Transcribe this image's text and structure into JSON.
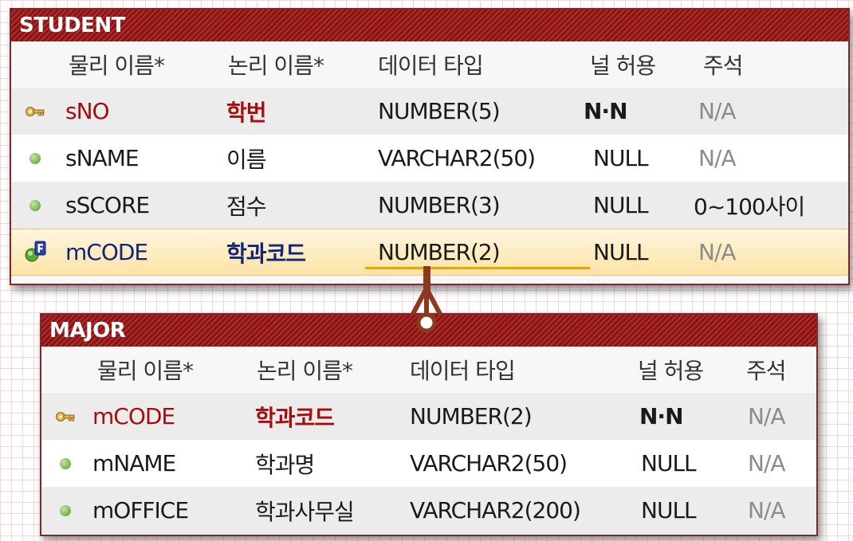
{
  "diagram": {
    "headers": {
      "physical": "물리 이름*",
      "logical": "논리 이름*",
      "datatype": "데이터 타입",
      "nullable": "널 허용",
      "comment": "주석"
    },
    "student": {
      "title": "STUDENT",
      "rows": [
        {
          "physical": "sNO",
          "logical": "학번",
          "datatype": "NUMBER(5)",
          "nullable": "N·N",
          "comment": "N/A",
          "icon": "primary-key-icon"
        },
        {
          "physical": "sNAME",
          "logical": "이름",
          "datatype": "VARCHAR2(50)",
          "nullable": "NULL",
          "comment": "N/A",
          "icon": "column-dot-icon"
        },
        {
          "physical": "sSCORE",
          "logical": "점수",
          "datatype": "NUMBER(3)",
          "nullable": "NULL",
          "comment": "0~100사이",
          "icon": "column-dot-icon"
        },
        {
          "physical": "mCODE",
          "logical": "학과코드",
          "datatype": "NUMBER(2)",
          "nullable": "NULL",
          "comment": "N/A",
          "icon": "foreign-key-icon"
        }
      ]
    },
    "major": {
      "title": "MAJOR",
      "rows": [
        {
          "physical": "mCODE",
          "logical": "학과코드",
          "datatype": "NUMBER(2)",
          "nullable": "N·N",
          "comment": "N/A",
          "icon": "primary-key-icon"
        },
        {
          "physical": "mNAME",
          "logical": "학과명",
          "datatype": "VARCHAR2(50)",
          "nullable": "NULL",
          "comment": "N/A",
          "icon": "column-dot-icon"
        },
        {
          "physical": "mOFFICE",
          "logical": "학과사무실",
          "datatype": "VARCHAR2(200)",
          "nullable": "NULL",
          "comment": "N/A",
          "icon": "column-dot-icon"
        }
      ]
    },
    "colors": {
      "title_bar": "#8e1212",
      "primary_key_text": "#a50e0e",
      "foreign_key_text": "#13247a",
      "relationship_line": "#8b3a1f",
      "selection_underline": "#f0a400"
    }
  }
}
